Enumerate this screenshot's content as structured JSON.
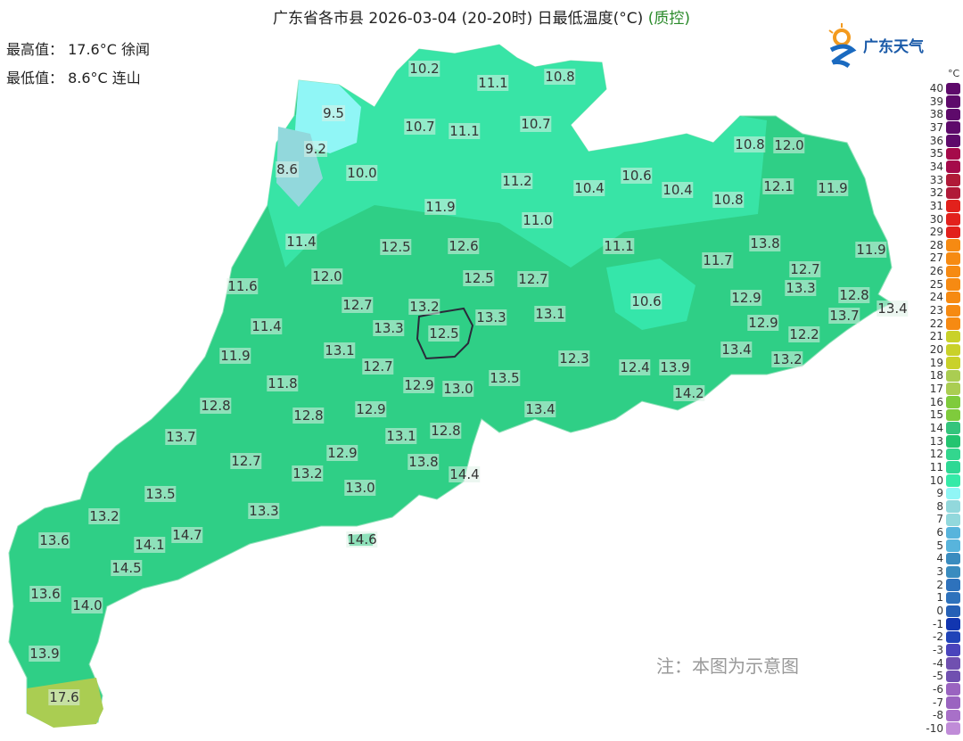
{
  "title": {
    "main": "广东省各市县 2026-03-04 (20-20时) 日最低温度(°C)",
    "qc": "(质控)"
  },
  "stats": {
    "max": "最高值： 17.6°C 徐闻",
    "min": "最低值： 8.6°C 连山"
  },
  "logo": {
    "text": "广东天气"
  },
  "note": "注：本图为示意图",
  "legend": {
    "unit": "°C",
    "items": [
      {
        "v": "40",
        "c": "#5e0a6b"
      },
      {
        "v": "39",
        "c": "#5e0a6b"
      },
      {
        "v": "38",
        "c": "#5e0a6b"
      },
      {
        "v": "37",
        "c": "#5e0a6b"
      },
      {
        "v": "36",
        "c": "#5e0a6b"
      },
      {
        "v": "35",
        "c": "#a50a4a"
      },
      {
        "v": "34",
        "c": "#a50a4a"
      },
      {
        "v": "33",
        "c": "#b01a38"
      },
      {
        "v": "32",
        "c": "#b01a38"
      },
      {
        "v": "31",
        "c": "#e2211c"
      },
      {
        "v": "30",
        "c": "#e2211c"
      },
      {
        "v": "29",
        "c": "#e2211c"
      },
      {
        "v": "28",
        "c": "#f68a12"
      },
      {
        "v": "27",
        "c": "#f68a12"
      },
      {
        "v": "26",
        "c": "#f68a12"
      },
      {
        "v": "25",
        "c": "#f68a12"
      },
      {
        "v": "24",
        "c": "#f68a12"
      },
      {
        "v": "23",
        "c": "#f68a12"
      },
      {
        "v": "22",
        "c": "#f68a12"
      },
      {
        "v": "21",
        "c": "#c9d12a"
      },
      {
        "v": "20",
        "c": "#c9d12a"
      },
      {
        "v": "19",
        "c": "#c9d12a"
      },
      {
        "v": "18",
        "c": "#aacd52"
      },
      {
        "v": "17",
        "c": "#aacd52"
      },
      {
        "v": "16",
        "c": "#7fcb3c"
      },
      {
        "v": "15",
        "c": "#7fcb3c"
      },
      {
        "v": "14",
        "c": "#34c47c"
      },
      {
        "v": "13",
        "c": "#23c470"
      },
      {
        "v": "12",
        "c": "#33d68e"
      },
      {
        "v": "11",
        "c": "#2ed894"
      },
      {
        "v": "10",
        "c": "#35eaa8"
      },
      {
        "v": "9",
        "c": "#90f6f6"
      },
      {
        "v": "8",
        "c": "#92d8dc"
      },
      {
        "v": "7",
        "c": "#92d8dc"
      },
      {
        "v": "6",
        "c": "#58b4dc"
      },
      {
        "v": "5",
        "c": "#58b4dc"
      },
      {
        "v": "4",
        "c": "#3a8cbf"
      },
      {
        "v": "3",
        "c": "#3a8cbf"
      },
      {
        "v": "2",
        "c": "#2e72bc"
      },
      {
        "v": "1",
        "c": "#2e72bc"
      },
      {
        "v": "0",
        "c": "#2560b6"
      },
      {
        "v": "-1",
        "c": "#1236b0"
      },
      {
        "v": "-2",
        "c": "#2044b8"
      },
      {
        "v": "-3",
        "c": "#4a44bc"
      },
      {
        "v": "-4",
        "c": "#7050b0"
      },
      {
        "v": "-5",
        "c": "#7050b0"
      },
      {
        "v": "-6",
        "c": "#9a64c0"
      },
      {
        "v": "-7",
        "c": "#9a64c0"
      },
      {
        "v": "-8",
        "c": "#a870c8"
      },
      {
        "v": "-10",
        "c": "#c08cd8"
      }
    ]
  },
  "stations": [
    "10.2",
    "11.1",
    "10.8",
    "9.5",
    "10.7",
    "11.1",
    "10.7",
    "9.2",
    "8.6",
    "10.0",
    "10.8",
    "12.0",
    "11.2",
    "10.4",
    "10.6",
    "10.4",
    "12.1",
    "11.9",
    "10.8",
    "11.9",
    "11.0",
    "11.4",
    "12.5",
    "12.6",
    "11.1",
    "13.8",
    "11.9",
    "11.7",
    "12.0",
    "12.5",
    "12.7",
    "12.7",
    "11.6",
    "13.3",
    "12.8",
    "13.4",
    "12.7",
    "13.2",
    "10.6",
    "12.9",
    "13.3",
    "13.1",
    "11.4",
    "13.3",
    "12.5",
    "12.9",
    "13.7",
    "12.2",
    "13.1",
    "11.9",
    "12.7",
    "12.3",
    "12.4",
    "13.9",
    "13.4",
    "13.2",
    "11.8",
    "12.9",
    "13.0",
    "13.5",
    "14.2",
    "12.8",
    "12.8",
    "12.9",
    "13.4",
    "13.7",
    "13.1",
    "12.8",
    "12.7",
    "12.9",
    "13.2",
    "13.8",
    "14.4",
    "13.0",
    "13.5",
    "13.3",
    "13.2",
    "13.6",
    "14.7",
    "14.1",
    "14.6",
    "14.5",
    "13.6",
    "14.0",
    "13.9",
    "17.6"
  ]
}
